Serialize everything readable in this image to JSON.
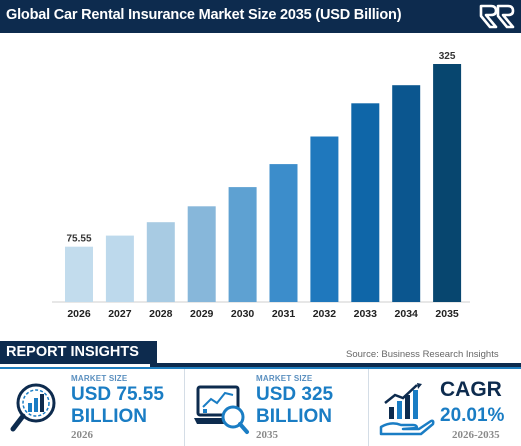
{
  "header": {
    "title": "Global Car Rental Insurance Market Size 2035 (USD Billion)"
  },
  "chart_data": {
    "type": "bar",
    "title": "Global Car Rental Insurance Market Size 2035 (USD Billion)",
    "categories": [
      "2026",
      "2027",
      "2028",
      "2029",
      "2030",
      "2031",
      "2032",
      "2033",
      "2034",
      "2035"
    ],
    "values": [
      75.55,
      90.7,
      108.9,
      130.7,
      156.9,
      188.3,
      226.0,
      271.3,
      296.0,
      325
    ],
    "data_labels": {
      "0": "75.55",
      "9": "325"
    },
    "colors": [
      "#c2dced",
      "#bdd9ec",
      "#a8cbe3",
      "#87b7da",
      "#5ea1d2",
      "#3c8dcb",
      "#1f78bd",
      "#0f66a8",
      "#0b568f",
      "#07466f"
    ],
    "ylim": [
      0,
      340
    ],
    "grid": false,
    "legend": "none",
    "xlabel": "",
    "ylabel": ""
  },
  "insights": {
    "label": "REPORT INSIGHTS",
    "source": "Source: Business Research Insights",
    "cards": [
      {
        "label": "MARKET SIZE",
        "value_line1": "USD 75.55",
        "value_line2": "BILLION",
        "year": "2026",
        "icon": "magnifier-chart-icon"
      },
      {
        "label": "MARKET SIZE",
        "value_line1": "USD 325",
        "value_line2": "BILLION",
        "year": "2035",
        "icon": "laptop-chart-icon"
      }
    ],
    "cagr": {
      "title": "CAGR",
      "value": "20.01%",
      "period": "2026-2035",
      "icon": "hand-growth-icon"
    }
  },
  "colors": {
    "navy": "#0d2b4e",
    "accent": "#1a7dc4"
  }
}
